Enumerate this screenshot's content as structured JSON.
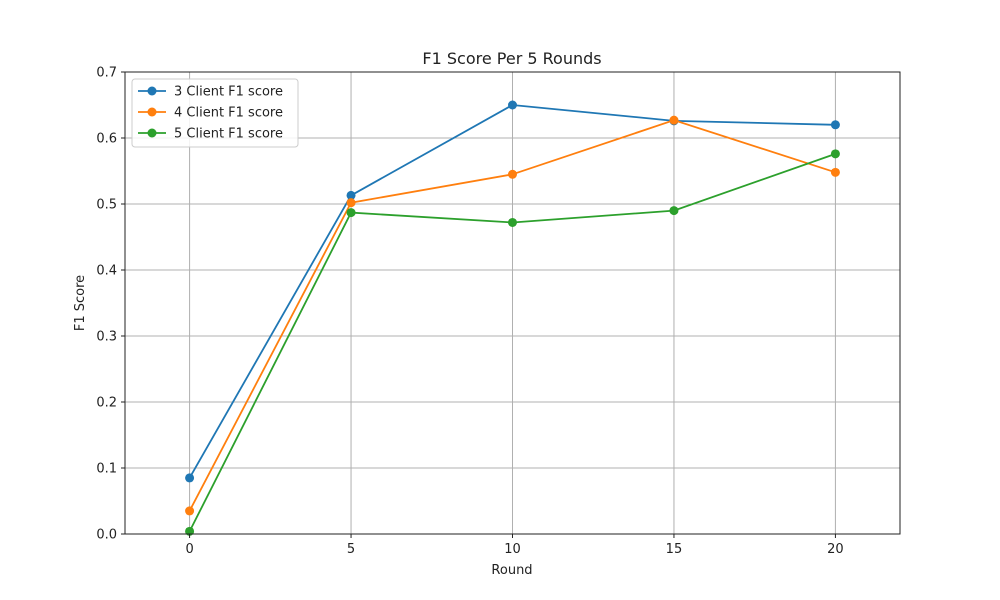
{
  "chart_data": {
    "type": "line",
    "title": "F1 Score Per 5 Rounds",
    "xlabel": "Round",
    "ylabel": "F1 Score",
    "x": [
      0,
      5,
      10,
      15,
      20
    ],
    "xlim": [
      -2,
      22
    ],
    "ylim": [
      0,
      0.7
    ],
    "xticks": [
      "0",
      "5",
      "10",
      "15",
      "20"
    ],
    "yticks": [
      "0.0",
      "0.1",
      "0.2",
      "0.3",
      "0.4",
      "0.5",
      "0.6",
      "0.7"
    ],
    "grid": true,
    "legend_position": "top-left",
    "series": [
      {
        "name": "3 Client F1 score",
        "color": "#1f77b4",
        "values": [
          0.085,
          0.513,
          0.65,
          0.626,
          0.62
        ]
      },
      {
        "name": "4 Client F1 score",
        "color": "#ff7f0e",
        "values": [
          0.035,
          0.502,
          0.545,
          0.627,
          0.548
        ]
      },
      {
        "name": "5 Client F1 score",
        "color": "#2ca02c",
        "values": [
          0.004,
          0.487,
          0.472,
          0.49,
          0.576
        ]
      }
    ]
  }
}
